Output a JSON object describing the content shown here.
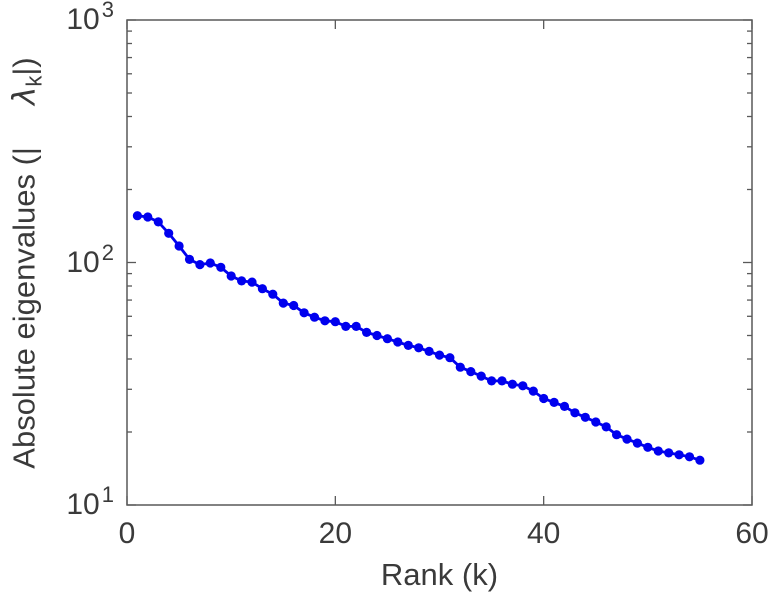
{
  "figure": {
    "background": "#ffffff"
  },
  "style_colors": {
    "series_blue": "#0000EE",
    "axis_line": "#595959",
    "text": "#3a3a3a"
  },
  "chart_data": {
    "type": "line",
    "title": "",
    "xlabel": "Rank (k)",
    "ylabel": {
      "prefix": "Absolute eigenvalues (|",
      "symbol": "λ",
      "subscript": "k",
      "suffix": "|)"
    },
    "grid": false,
    "legend": null,
    "x_axis": {
      "scale": "linear",
      "min": 0,
      "max": 60,
      "ticks": [
        0,
        20,
        40,
        60
      ]
    },
    "y_axis": {
      "scale": "log10",
      "min": 10,
      "max": 1000,
      "tick_base": "10",
      "major_tick_exponents": [
        1,
        2,
        3
      ],
      "minor_tick_mantissas": [
        2,
        3,
        4,
        5,
        6,
        7,
        8,
        9
      ]
    },
    "series": [
      {
        "name": "absolute-eigenvalues",
        "color": "#0000EE",
        "marker": "circle",
        "x": [
          1,
          2,
          3,
          4,
          5,
          6,
          7,
          8,
          9,
          10,
          11,
          12,
          13,
          14,
          15,
          16,
          17,
          18,
          19,
          20,
          21,
          22,
          23,
          24,
          25,
          26,
          27,
          28,
          29,
          30,
          31,
          32,
          33,
          34,
          35,
          36,
          37,
          38,
          39,
          40,
          41,
          42,
          43,
          44,
          45,
          46,
          47,
          48,
          49,
          50,
          51,
          52,
          53,
          54,
          55
        ],
        "y": [
          156,
          154,
          147,
          132,
          117,
          103,
          98,
          99.5,
          95.5,
          88,
          84,
          83,
          78,
          74,
          68,
          66.5,
          62,
          59.5,
          57.5,
          57,
          54.5,
          54.5,
          51.5,
          50,
          48.5,
          47,
          45.5,
          44.5,
          43,
          41.5,
          40.5,
          37,
          35.5,
          34,
          32.5,
          32.5,
          31.5,
          31,
          29.5,
          27.5,
          26.5,
          25.5,
          24,
          23,
          22,
          21,
          19.5,
          18.7,
          18,
          17.3,
          16.7,
          16.4,
          16.1,
          15.8,
          15.3
        ]
      }
    ]
  }
}
